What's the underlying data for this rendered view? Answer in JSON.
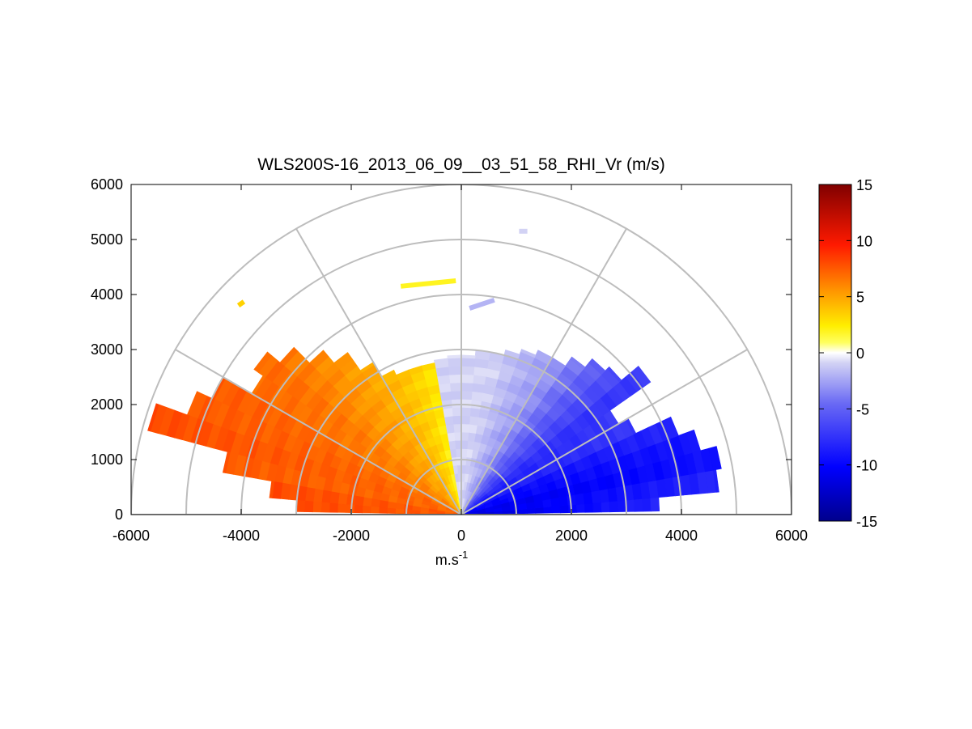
{
  "chart_data": {
    "type": "heatmap",
    "title": "WLS200S-16_2013_06_09__03_51_58_RHI_Vr (m/s)",
    "xlabel": "m.s",
    "xlabel_sup": "-1",
    "ylabel": "",
    "xlim": [
      -6000,
      6000
    ],
    "ylim": [
      0,
      6000
    ],
    "xticks": [
      -6000,
      -4000,
      -2000,
      0,
      2000,
      4000,
      6000
    ],
    "yticks": [
      0,
      1000,
      2000,
      3000,
      4000,
      5000,
      6000
    ],
    "polar_grid": {
      "range_rings_m": [
        1000,
        2000,
        3000,
        4000,
        5000,
        6000
      ],
      "spokes_deg": [
        30,
        60,
        90,
        120,
        150
      ]
    },
    "colorbar": {
      "min": -15,
      "max": 15,
      "ticks": [
        15,
        10,
        5,
        0,
        -5,
        -10,
        -15
      ],
      "colormap": "blue-white-yellow-red"
    },
    "sectors": [
      {
        "angle_start_deg": 1,
        "angle_end_deg": 5,
        "range_max_m": 3600,
        "vr_near": -12,
        "vr_far": -8
      },
      {
        "angle_start_deg": 5,
        "angle_end_deg": 10,
        "range_max_m": 4700,
        "vr_near": -11,
        "vr_far": -8
      },
      {
        "angle_start_deg": 10,
        "angle_end_deg": 15,
        "range_max_m": 4800,
        "vr_near": -11,
        "vr_far": -9
      },
      {
        "angle_start_deg": 15,
        "angle_end_deg": 20,
        "range_max_m": 4500,
        "vr_near": -10,
        "vr_far": -9
      },
      {
        "angle_start_deg": 20,
        "angle_end_deg": 25,
        "range_max_m": 4200,
        "vr_near": -10,
        "vr_far": -8
      },
      {
        "angle_start_deg": 25,
        "angle_end_deg": 30,
        "range_max_m": 3500,
        "vr_near": -9,
        "vr_far": -7
      },
      {
        "angle_start_deg": 30,
        "angle_end_deg": 35,
        "range_max_m": 3300,
        "vr_near": -9,
        "vr_far": -7
      },
      {
        "angle_start_deg": 35,
        "angle_end_deg": 40,
        "range_max_m": 4200,
        "vr_near": -8,
        "vr_far": -7
      },
      {
        "angle_start_deg": 40,
        "angle_end_deg": 45,
        "range_max_m": 3800,
        "vr_near": -7,
        "vr_far": -6
      },
      {
        "angle_start_deg": 45,
        "angle_end_deg": 50,
        "range_max_m": 3700,
        "vr_near": -6,
        "vr_far": -5
      },
      {
        "angle_start_deg": 50,
        "angle_end_deg": 55,
        "range_max_m": 3500,
        "vr_near": -5,
        "vr_far": -4
      },
      {
        "angle_start_deg": 55,
        "angle_end_deg": 60,
        "range_max_m": 3300,
        "vr_near": -4,
        "vr_far": -3
      },
      {
        "angle_start_deg": 60,
        "angle_end_deg": 65,
        "range_max_m": 3300,
        "vr_near": -3,
        "vr_far": -2.5
      },
      {
        "angle_start_deg": 65,
        "angle_end_deg": 70,
        "range_max_m": 3200,
        "vr_near": -2.5,
        "vr_far": -2
      },
      {
        "angle_start_deg": 70,
        "angle_end_deg": 75,
        "range_max_m": 3100,
        "vr_near": -2,
        "vr_far": -1.5
      },
      {
        "angle_start_deg": 75,
        "angle_end_deg": 80,
        "range_max_m": 3000,
        "vr_near": -1.5,
        "vr_far": -1
      },
      {
        "angle_start_deg": 80,
        "angle_end_deg": 85,
        "range_max_m": 3000,
        "vr_near": -1,
        "vr_far": -1
      },
      {
        "angle_start_deg": 85,
        "angle_end_deg": 90,
        "range_max_m": 2900,
        "vr_near": -1,
        "vr_far": -1
      },
      {
        "angle_start_deg": 90,
        "angle_end_deg": 95,
        "range_max_m": 2900,
        "vr_near": -1,
        "vr_far": -1
      },
      {
        "angle_start_deg": 95,
        "angle_end_deg": 100,
        "range_max_m": 2850,
        "vr_near": -1,
        "vr_far": -1
      },
      {
        "angle_start_deg": 100,
        "angle_end_deg": 105,
        "range_max_m": 2800,
        "vr_near": 2,
        "vr_far": 3
      },
      {
        "angle_start_deg": 105,
        "angle_end_deg": 110,
        "range_max_m": 2800,
        "vr_near": 3,
        "vr_far": 3.5
      },
      {
        "angle_start_deg": 110,
        "angle_end_deg": 115,
        "range_max_m": 2800,
        "vr_near": 3.5,
        "vr_far": 4
      },
      {
        "angle_start_deg": 115,
        "angle_end_deg": 120,
        "range_max_m": 2900,
        "vr_near": 4,
        "vr_far": 4.5
      },
      {
        "angle_start_deg": 120,
        "angle_end_deg": 125,
        "range_max_m": 3200,
        "vr_near": 4.5,
        "vr_far": 5
      },
      {
        "angle_start_deg": 125,
        "angle_end_deg": 130,
        "range_max_m": 3600,
        "vr_near": 5,
        "vr_far": 5.5
      },
      {
        "angle_start_deg": 130,
        "angle_end_deg": 135,
        "range_max_m": 3900,
        "vr_near": 5,
        "vr_far": 6
      },
      {
        "angle_start_deg": 135,
        "angle_end_deg": 140,
        "range_max_m": 4300,
        "vr_near": 5.5,
        "vr_far": 6.5
      },
      {
        "angle_start_deg": 140,
        "angle_end_deg": 145,
        "range_max_m": 4600,
        "vr_near": 6,
        "vr_far": 7
      },
      {
        "angle_start_deg": 145,
        "angle_end_deg": 150,
        "range_max_m": 4400,
        "vr_near": 6,
        "vr_far": 7
      },
      {
        "angle_start_deg": 150,
        "angle_end_deg": 155,
        "range_max_m": 5000,
        "vr_near": 6.5,
        "vr_far": 7.5
      },
      {
        "angle_start_deg": 155,
        "angle_end_deg": 160,
        "range_max_m": 5300,
        "vr_near": 7,
        "vr_far": 7.5
      },
      {
        "angle_start_deg": 160,
        "angle_end_deg": 165,
        "range_max_m": 5900,
        "vr_near": 7,
        "vr_far": 8
      },
      {
        "angle_start_deg": 165,
        "angle_end_deg": 170,
        "range_max_m": 4400,
        "vr_near": 7,
        "vr_far": 7.5
      },
      {
        "angle_start_deg": 170,
        "angle_end_deg": 175,
        "range_max_m": 3500,
        "vr_near": 7.5,
        "vr_far": 8
      },
      {
        "angle_start_deg": 175,
        "angle_end_deg": 179,
        "range_max_m": 3000,
        "vr_near": 7.5,
        "vr_far": 8
      }
    ],
    "isolated_echoes": [
      {
        "x1": -1100,
        "y1": 4150,
        "x2": -100,
        "y2": 4250,
        "vr": 2
      },
      {
        "x1": -4050,
        "y1": 3800,
        "x2": -3950,
        "y2": 3870,
        "vr": 3.5
      },
      {
        "x1": 1050,
        "y1": 5150,
        "x2": 1200,
        "y2": 5150,
        "vr": -1
      },
      {
        "x1": 150,
        "y1": 3750,
        "x2": 600,
        "y2": 3900,
        "vr": -2
      }
    ]
  }
}
